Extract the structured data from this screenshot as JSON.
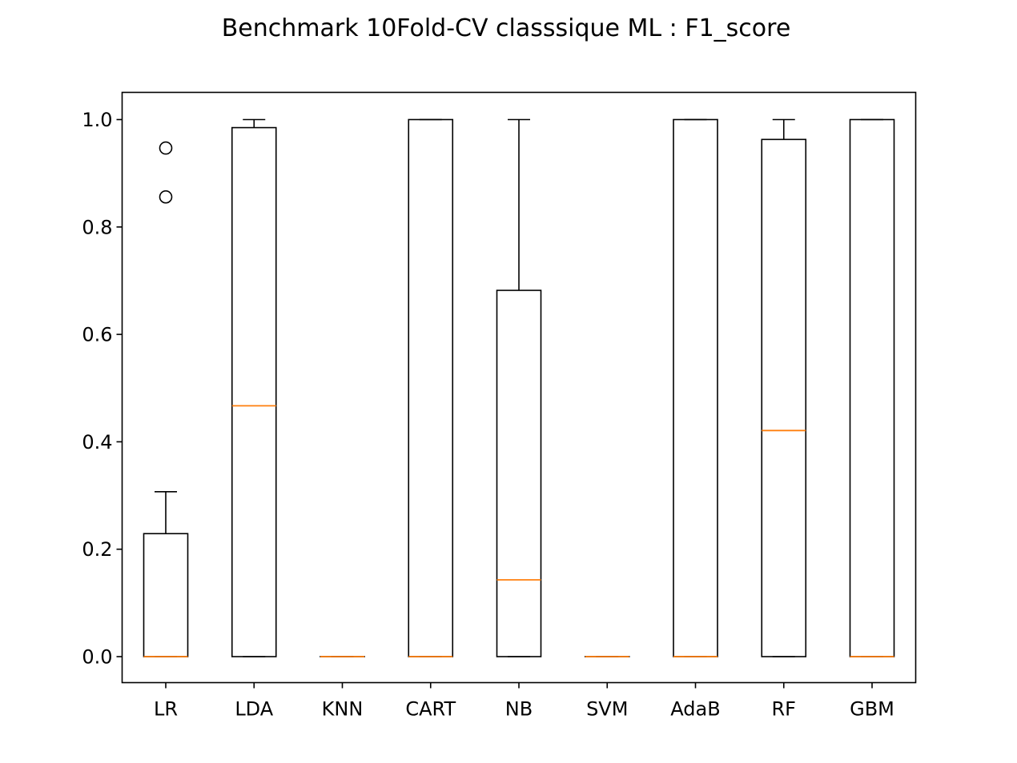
{
  "chart_data": {
    "type": "box",
    "title": "Benchmark 10Fold-CV classsique ML : F1_score",
    "xlabel": "",
    "ylabel": "",
    "ylim": [
      -0.048,
      1.05
    ],
    "yticks": [
      0.0,
      0.2,
      0.4,
      0.6,
      0.8,
      1.0
    ],
    "ytick_labels": [
      "0.0",
      "0.2",
      "0.4",
      "0.6",
      "0.8",
      "1.0"
    ],
    "categories": [
      "LR",
      "LDA",
      "KNN",
      "CART",
      "NB",
      "SVM",
      "AdaB",
      "RF",
      "GBM"
    ],
    "boxes": [
      {
        "label": "LR",
        "whisker_low": 0.0,
        "q1": 0.0,
        "median": 0.0,
        "q3": 0.229,
        "whisker_high": 0.307,
        "fliers": [
          0.856,
          0.947
        ]
      },
      {
        "label": "LDA",
        "whisker_low": 0.0,
        "q1": 0.0,
        "median": 0.467,
        "q3": 0.985,
        "whisker_high": 1.0,
        "fliers": []
      },
      {
        "label": "KNN",
        "whisker_low": 0.0,
        "q1": 0.0,
        "median": 0.0,
        "q3": 0.0,
        "whisker_high": 0.0,
        "fliers": []
      },
      {
        "label": "CART",
        "whisker_low": 0.0,
        "q1": 0.0,
        "median": 0.0,
        "q3": 1.0,
        "whisker_high": 1.0,
        "fliers": []
      },
      {
        "label": "NB",
        "whisker_low": 0.0,
        "q1": 0.0,
        "median": 0.143,
        "q3": 0.682,
        "whisker_high": 1.0,
        "fliers": []
      },
      {
        "label": "SVM",
        "whisker_low": 0.0,
        "q1": 0.0,
        "median": 0.0,
        "q3": 0.0,
        "whisker_high": 0.0,
        "fliers": []
      },
      {
        "label": "AdaB",
        "whisker_low": 0.0,
        "q1": 0.0,
        "median": 0.0,
        "q3": 1.0,
        "whisker_high": 1.0,
        "fliers": []
      },
      {
        "label": "RF",
        "whisker_low": 0.0,
        "q1": 0.0,
        "median": 0.421,
        "q3": 0.963,
        "whisker_high": 1.0,
        "fliers": []
      },
      {
        "label": "GBM",
        "whisker_low": 0.0,
        "q1": 0.0,
        "median": 0.0,
        "q3": 1.0,
        "whisker_high": 1.0,
        "fliers": []
      }
    ],
    "grid": false,
    "legend": "none",
    "colors": {
      "box": "#000000",
      "median": "#ff7f0e",
      "flier": "#000000"
    }
  }
}
